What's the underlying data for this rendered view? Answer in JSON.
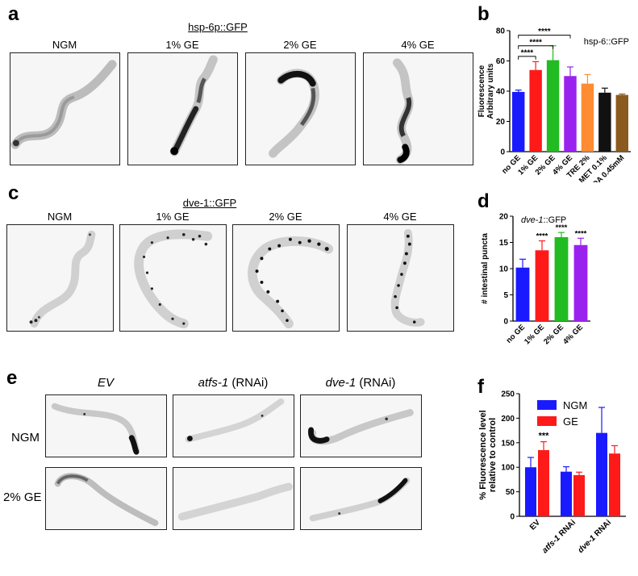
{
  "panel_a": {
    "letter": "a",
    "title": "hsp-6p::GFP",
    "columns": [
      "NGM",
      "1% GE",
      "2% GE",
      "4% GE"
    ]
  },
  "panel_b": {
    "letter": "b"
  },
  "panel_c": {
    "letter": "c",
    "title": "dve-1::GFP",
    "columns": [
      "NGM",
      "1% GE",
      "2% GE",
      "4% GE"
    ]
  },
  "panel_d": {
    "letter": "d"
  },
  "panel_e": {
    "letter": "e",
    "columns": [
      {
        "gene": "EV",
        "suffix": ""
      },
      {
        "gene": "atfs-1",
        "suffix": " (RNAi)"
      },
      {
        "gene": "dve-1",
        "suffix": " (RNAi)"
      }
    ],
    "rows": [
      "NGM",
      "2% GE"
    ]
  },
  "panel_f": {
    "letter": "f"
  },
  "colors": {
    "blue": "#1a1aff",
    "red": "#ff1a1a",
    "green": "#22bb22",
    "purple": "#9a22ee",
    "orange": "#ff8c33",
    "black": "#111111",
    "brown": "#8b5a1e"
  },
  "chart_data": [
    {
      "id": "b",
      "type": "bar",
      "title": "hsp-6::GFP",
      "ylabel": "Fluorescence\nArbitrary units",
      "ylim": [
        0,
        80
      ],
      "yticks": [
        0,
        20,
        40,
        60,
        80
      ],
      "categories": [
        "no GE",
        "1% GE",
        "2% GE",
        "4% GE",
        "TRE 2%",
        "MET 0.1%",
        "OA 0.45mM"
      ],
      "values": [
        39.5,
        54,
        60.5,
        50,
        45,
        39,
        37.5
      ],
      "errors": [
        1.2,
        5.5,
        9.5,
        6,
        6,
        3,
        0.6
      ],
      "colors": [
        "#1a1aff",
        "#ff1a1a",
        "#22bb22",
        "#9a22ee",
        "#ff8c33",
        "#111111",
        "#8b5a1e"
      ],
      "significance": [
        {
          "from": 0,
          "to": 1,
          "label": "****"
        },
        {
          "from": 0,
          "to": 2,
          "label": "****"
        },
        {
          "from": 0,
          "to": 3,
          "label": "****"
        }
      ]
    },
    {
      "id": "d",
      "type": "bar",
      "title_italic": "dve-1",
      "title_rest": "::GFP",
      "ylabel": "# intestinal puncta",
      "ylim": [
        0,
        20
      ],
      "yticks": [
        0,
        5,
        10,
        15,
        20
      ],
      "categories": [
        "no GE",
        "1% GE",
        "2% GE",
        "4% GE"
      ],
      "values": [
        10.2,
        13.5,
        16.0,
        14.5
      ],
      "errors": [
        1.6,
        1.8,
        0.9,
        1.3
      ],
      "colors": [
        "#1a1aff",
        "#ff1a1a",
        "#22bb22",
        "#9a22ee"
      ],
      "stars": [
        "",
        "****",
        "****",
        "****"
      ]
    },
    {
      "id": "f",
      "type": "bar",
      "ylabel": "% Fluorescence level\nrelative to control",
      "ylim": [
        0,
        250
      ],
      "yticks": [
        0,
        50,
        100,
        150,
        200,
        250
      ],
      "categories": [
        "EV",
        "atfs-1 RNAi",
        "dve-1 RNAi"
      ],
      "series": [
        {
          "name": "NGM",
          "color": "#1a1aff",
          "values": [
            100,
            91,
            170
          ],
          "errors": [
            20,
            10,
            52
          ]
        },
        {
          "name": "GE",
          "color": "#ff1a1a",
          "values": [
            135,
            84,
            128
          ],
          "errors": [
            17,
            6,
            16
          ]
        }
      ],
      "annotations": [
        {
          "category": 0,
          "label": "***"
        }
      ]
    }
  ]
}
